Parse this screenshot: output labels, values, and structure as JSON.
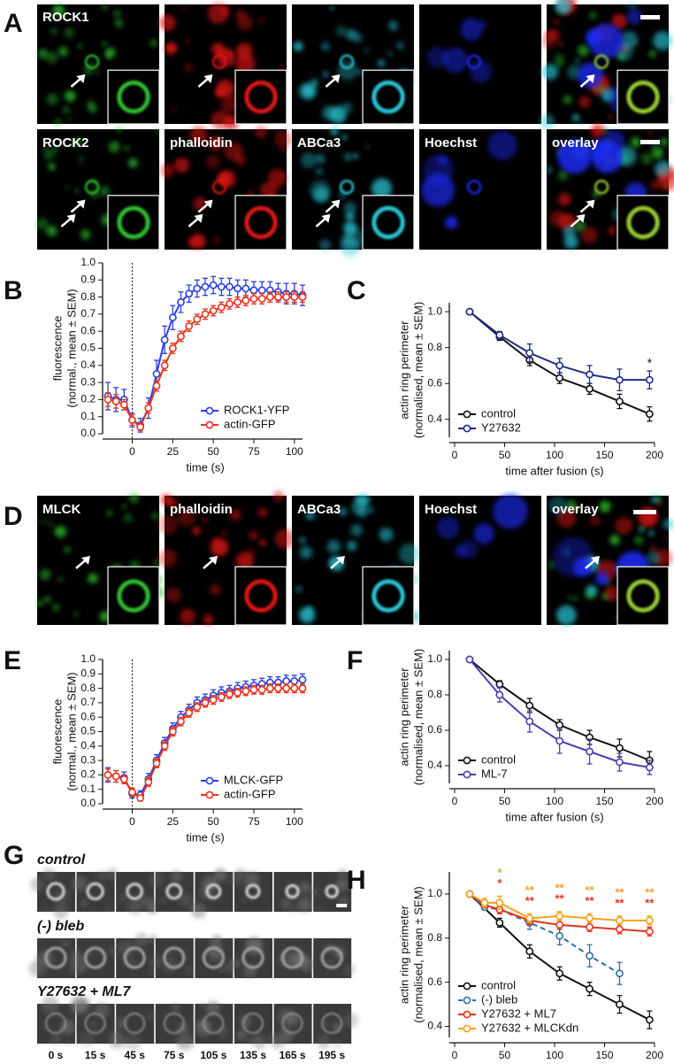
{
  "panels": [
    "A",
    "B",
    "C",
    "D",
    "E",
    "F",
    "G",
    "H"
  ],
  "panel_A": {
    "row1_labels": [
      "ROCK1"
    ],
    "row2_labels": [
      "ROCK2",
      "phalloidin",
      "ABCa3",
      "Hoechst",
      "overlay"
    ]
  },
  "panel_D": {
    "labels": [
      "MLCK",
      "phalloidin",
      "ABCa3",
      "Hoechst",
      "overlay"
    ]
  },
  "panel_G": {
    "rows": [
      "control",
      "(-) bleb",
      "Y27632 + ML7"
    ],
    "times": [
      "0 s",
      "15 s",
      "45 s",
      "75 s",
      "105 s",
      "135 s",
      "165 s",
      "195 s"
    ]
  },
  "chart_data": [
    {
      "type": "line",
      "ylabel": [
        "fluorescence",
        "(normal., mean ± SEM)"
      ],
      "xlabel": "time (s)",
      "x": [
        -15,
        -10,
        -5,
        0,
        5,
        10,
        15,
        20,
        25,
        30,
        35,
        40,
        45,
        50,
        55,
        60,
        65,
        70,
        75,
        80,
        85,
        90,
        95,
        100,
        105
      ],
      "series": [
        {
          "name": "ROCK1-YFP",
          "color": "#2a3fe0",
          "values": [
            0.22,
            0.2,
            0.2,
            0.08,
            0.05,
            0.15,
            0.35,
            0.55,
            0.68,
            0.77,
            0.82,
            0.85,
            0.86,
            0.87,
            0.86,
            0.86,
            0.85,
            0.85,
            0.84,
            0.84,
            0.84,
            0.83,
            0.82,
            0.82,
            0.81
          ],
          "errors": [
            0.08,
            0.07,
            0.06,
            0.04,
            0.04,
            0.06,
            0.08,
            0.08,
            0.07,
            0.06,
            0.05,
            0.05,
            0.05,
            0.05,
            0.05,
            0.05,
            0.05,
            0.05,
            0.05,
            0.05,
            0.05,
            0.05,
            0.06,
            0.06,
            0.06
          ]
        },
        {
          "name": "actin-GFP",
          "color": "#e8331c",
          "values": [
            0.2,
            0.19,
            0.17,
            0.08,
            0.04,
            0.15,
            0.28,
            0.4,
            0.5,
            0.57,
            0.63,
            0.67,
            0.7,
            0.72,
            0.74,
            0.76,
            0.77,
            0.78,
            0.79,
            0.79,
            0.8,
            0.8,
            0.8,
            0.8,
            0.8
          ],
          "errors": [
            0.04,
            0.04,
            0.03,
            0.03,
            0.02,
            0.03,
            0.03,
            0.03,
            0.03,
            0.03,
            0.03,
            0.03,
            0.03,
            0.03,
            0.03,
            0.03,
            0.03,
            0.03,
            0.03,
            0.03,
            0.03,
            0.03,
            0.03,
            0.03,
            0.03
          ]
        }
      ],
      "xlim": [
        -15,
        105
      ],
      "xticks": [
        0,
        25,
        50,
        75,
        100
      ],
      "ylim": [
        0,
        1
      ],
      "yticks": [
        {
          "value": 0,
          "label": "0.0"
        },
        0.1,
        0.2,
        0.3,
        0.4,
        0.5,
        0.6,
        0.7,
        0.8,
        0.9,
        {
          "value": 1,
          "label": "1.0"
        }
      ],
      "marker_x": 0,
      "legend": "lower right"
    },
    {
      "type": "line",
      "ylabel": [
        "actin ring perimeter",
        "(normalised, mean ± SEM)"
      ],
      "xlabel": "time after fusion (s)",
      "x": [
        15,
        45,
        75,
        105,
        135,
        165,
        195
      ],
      "series": [
        {
          "name": "control",
          "color": "#111111",
          "values": [
            1,
            0.86,
            0.73,
            0.63,
            0.57,
            0.5,
            0.43
          ],
          "errors": [
            0,
            0.02,
            0.03,
            0.03,
            0.03,
            0.04,
            0.04
          ]
        },
        {
          "name": "Y27632",
          "color": "#1f2a8c",
          "values": [
            1,
            0.87,
            0.77,
            0.7,
            0.65,
            0.62,
            0.62
          ],
          "errors": [
            0,
            0.02,
            0.05,
            0.04,
            0.05,
            0.06,
            0.05
          ]
        }
      ],
      "xlim": [
        0,
        200
      ],
      "xticks": [
        0,
        50,
        100,
        150,
        200
      ],
      "ylim": [
        0.3,
        1.05
      ],
      "yticks": [
        0.4,
        0.6,
        0.8,
        {
          "value": 1,
          "label": "1.0"
        }
      ],
      "annotations": [
        {
          "x": 195,
          "text": "*"
        }
      ],
      "legend": "lower left"
    },
    {
      "type": "line",
      "ylabel": [
        "fluorescence",
        "(normal., mean ± SEM)"
      ],
      "xlabel": "time (s)",
      "x": [
        -15,
        -10,
        -5,
        0,
        5,
        10,
        15,
        20,
        25,
        30,
        35,
        40,
        45,
        50,
        55,
        60,
        65,
        70,
        75,
        80,
        85,
        90,
        95,
        100,
        105
      ],
      "series": [
        {
          "name": "MLCK-GFP",
          "color": "#2a3fe0",
          "values": [
            0.2,
            0.19,
            0.18,
            0.07,
            0.06,
            0.17,
            0.3,
            0.42,
            0.52,
            0.6,
            0.65,
            0.7,
            0.72,
            0.75,
            0.77,
            0.78,
            0.8,
            0.81,
            0.82,
            0.83,
            0.84,
            0.84,
            0.85,
            0.85,
            0.86
          ],
          "errors": [
            0.05,
            0.04,
            0.04,
            0.03,
            0.03,
            0.04,
            0.04,
            0.04,
            0.04,
            0.04,
            0.04,
            0.04,
            0.04,
            0.04,
            0.04,
            0.04,
            0.04,
            0.04,
            0.04,
            0.04,
            0.04,
            0.04,
            0.04,
            0.04,
            0.04
          ]
        },
        {
          "name": "actin-GFP",
          "color": "#e8331c",
          "values": [
            0.2,
            0.19,
            0.17,
            0.08,
            0.04,
            0.15,
            0.28,
            0.4,
            0.5,
            0.57,
            0.63,
            0.67,
            0.7,
            0.72,
            0.74,
            0.76,
            0.77,
            0.78,
            0.79,
            0.79,
            0.8,
            0.8,
            0.8,
            0.8,
            0.8
          ],
          "errors": [
            0.04,
            0.04,
            0.03,
            0.03,
            0.02,
            0.03,
            0.03,
            0.03,
            0.03,
            0.03,
            0.03,
            0.03,
            0.03,
            0.03,
            0.03,
            0.03,
            0.03,
            0.03,
            0.03,
            0.03,
            0.03,
            0.03,
            0.03,
            0.03,
            0.03
          ]
        }
      ],
      "xlim": [
        -15,
        105
      ],
      "xticks": [
        0,
        25,
        50,
        75,
        100
      ],
      "ylim": [
        0,
        1
      ],
      "yticks": [
        {
          "value": 0,
          "label": "0.0"
        },
        0.1,
        0.2,
        0.3,
        0.4,
        0.5,
        0.6,
        0.7,
        0.8,
        0.9,
        {
          "value": 1,
          "label": "1.0"
        }
      ],
      "marker_x": 0,
      "legend": "lower right"
    },
    {
      "type": "line",
      "ylabel": [
        "actin ring perimeter",
        "(normalised, mean ± SEM)"
      ],
      "xlabel": "time after fusion (s)",
      "x": [
        15,
        45,
        75,
        105,
        135,
        165,
        195
      ],
      "series": [
        {
          "name": "control",
          "color": "#111111",
          "values": [
            1,
            0.86,
            0.74,
            0.63,
            0.56,
            0.5,
            0.43
          ],
          "errors": [
            0,
            0.02,
            0.04,
            0.03,
            0.04,
            0.05,
            0.05
          ]
        },
        {
          "name": "ML-7",
          "color": "#4b3fb0",
          "values": [
            1,
            0.8,
            0.65,
            0.54,
            0.48,
            0.42,
            0.39
          ],
          "errors": [
            0,
            0.04,
            0.06,
            0.07,
            0.07,
            0.05,
            0.04
          ]
        }
      ],
      "xlim": [
        0,
        200
      ],
      "xticks": [
        0,
        50,
        100,
        150,
        200
      ],
      "ylim": [
        0.3,
        1.05
      ],
      "yticks": [
        0.4,
        0.6,
        0.8,
        {
          "value": 1,
          "label": "1.0"
        }
      ],
      "legend": "lower left"
    },
    {
      "type": "line",
      "ylabel": [
        "actin ring perimeter",
        "(normalised, mean ± SEM)"
      ],
      "xlabel": "time after fusion (s)",
      "series": [
        {
          "name": "control",
          "color": "#111111",
          "x": [
            15,
            45,
            75,
            105,
            135,
            165,
            195
          ],
          "values": [
            1,
            0.87,
            0.74,
            0.64,
            0.57,
            0.5,
            0.43
          ],
          "errors": [
            0,
            0.02,
            0.03,
            0.03,
            0.03,
            0.04,
            0.04
          ]
        },
        {
          "name": "(-) bleb",
          "color": "#2a6fa8",
          "dashed": true,
          "x": [
            15,
            30,
            45,
            75,
            105,
            135,
            165
          ],
          "values": [
            1,
            0.94,
            0.93,
            0.87,
            0.81,
            0.72,
            0.64
          ],
          "errors": [
            0,
            0.01,
            0.02,
            0.03,
            0.04,
            0.05,
            0.05
          ]
        },
        {
          "name": "Y27632 + ML7",
          "color": "#e8331c",
          "x": [
            15,
            30,
            45,
            75,
            105,
            135,
            165,
            195
          ],
          "values": [
            1,
            0.95,
            0.93,
            0.88,
            0.86,
            0.85,
            0.84,
            0.83
          ],
          "errors": [
            0,
            0.01,
            0.02,
            0.02,
            0.02,
            0.02,
            0.02,
            0.02
          ]
        },
        {
          "name": "Y27632 + MLCKdn",
          "color": "#f2a21b",
          "x": [
            15,
            30,
            45,
            75,
            105,
            135,
            165,
            195
          ],
          "values": [
            1,
            0.96,
            0.96,
            0.89,
            0.9,
            0.89,
            0.88,
            0.88
          ],
          "errors": [
            0,
            0.02,
            0.03,
            0.02,
            0.02,
            0.02,
            0.02,
            0.02
          ]
        }
      ],
      "xlim": [
        0,
        200
      ],
      "xticks": [
        0,
        50,
        100,
        150,
        200
      ],
      "ylim": [
        0.35,
        1.1
      ],
      "yticks": [
        0.4,
        0.6,
        0.8,
        {
          "value": 1,
          "label": "1.0"
        }
      ],
      "sig_x": [
        45,
        75,
        105,
        135,
        165,
        195
      ],
      "significance": [
        {
          "series": 3,
          "labels": [
            "*",
            "**",
            "**",
            "**",
            "**",
            "**"
          ]
        },
        {
          "series": 2,
          "labels": [
            "*",
            "**",
            "**",
            "**",
            "**",
            "**"
          ]
        }
      ],
      "legend": "lower left"
    }
  ]
}
